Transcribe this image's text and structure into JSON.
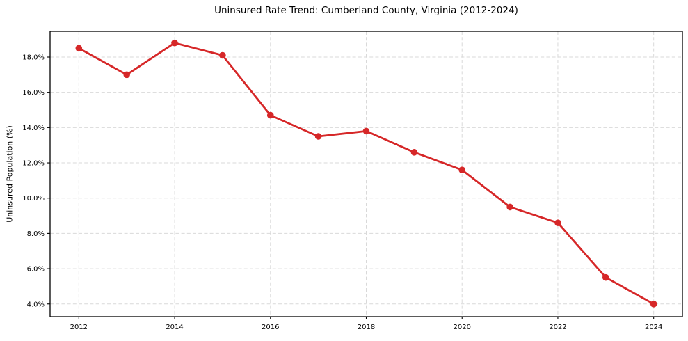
{
  "figure": {
    "title": "Uninsured Rate Trend: Cumberland County, Virginia (2012-2024)",
    "ylabel": "Uninsured Population (%)"
  },
  "chart_data": {
    "type": "line",
    "title": "Uninsured Rate Trend: Cumberland County, Virginia (2012-2024)",
    "xlabel": "",
    "ylabel": "Uninsured Population (%)",
    "x": [
      2012,
      2013,
      2014,
      2015,
      2016,
      2017,
      2018,
      2019,
      2020,
      2021,
      2022,
      2023,
      2024
    ],
    "values": [
      18.5,
      17.0,
      18.8,
      18.1,
      14.7,
      13.5,
      13.8,
      12.6,
      11.6,
      9.5,
      8.6,
      5.5,
      4.0
    ],
    "xticks": {
      "positions": [
        2012,
        2014,
        2016,
        2018,
        2020,
        2022,
        2024
      ],
      "labels": [
        "2012",
        "2014",
        "2016",
        "2018",
        "2020",
        "2022",
        "2024"
      ]
    },
    "yticks": {
      "positions": [
        4,
        6,
        8,
        10,
        12,
        14,
        16,
        18
      ],
      "labels": [
        "4.0%",
        "6.0%",
        "8.0%",
        "10.0%",
        "12.0%",
        "14.0%",
        "16.0%",
        "18.0%"
      ]
    },
    "xlim": [
      2011.4,
      2024.6
    ],
    "ylim": [
      3.28,
      19.46
    ],
    "grid": true,
    "grid_style": "dashed",
    "legend": false,
    "line_color": "#d62728",
    "marker": "circle",
    "grid_color": "#d9d9d9",
    "spine_color": "#000000",
    "text_color": "#000000",
    "background": "#ffffff"
  }
}
